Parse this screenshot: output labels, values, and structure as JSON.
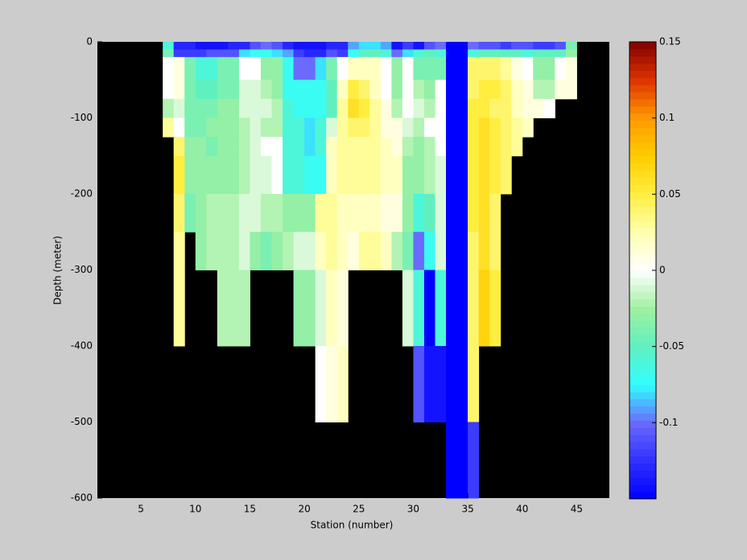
{
  "chart_data": {
    "type": "heatmap",
    "xlabel": "Station (number)",
    "ylabel": "Depth (meter)",
    "xlim": [
      1,
      48
    ],
    "ylim": [
      -600,
      0
    ],
    "xticks": [
      5,
      10,
      15,
      20,
      25,
      30,
      35,
      40,
      45
    ],
    "yticks": [
      0,
      -100,
      -200,
      -300,
      -400,
      -500,
      -600
    ],
    "x_edges": [
      7,
      8,
      9,
      10,
      11,
      12,
      13,
      14,
      15,
      16,
      17,
      18,
      19,
      20,
      21,
      22,
      23,
      24,
      25,
      26,
      27,
      28,
      29,
      30,
      31,
      32,
      33,
      34,
      35,
      36,
      37,
      38,
      39,
      40,
      41,
      42,
      43,
      44,
      45
    ],
    "y_edges": [
      0,
      -10,
      -20,
      -50,
      -75,
      -100,
      -125,
      -150,
      -200,
      -250,
      -300,
      -400,
      -500,
      -600
    ],
    "clim": [
      -0.15,
      0.15
    ],
    "cticks": [
      0.15,
      0.1,
      0.05,
      0,
      -0.05,
      -0.1
    ],
    "colormap": [
      "#0000ff",
      "#3030ff",
      "#6a6aff",
      "#30ffff",
      "#60f0c0",
      "#a0f0a0",
      "#ffffff",
      "#ffffb0",
      "#ffee40",
      "#ffcc00",
      "#ff9900",
      "#dd3300",
      "#800000"
    ],
    "background": "#000000",
    "values": [
      [
        -0.06,
        -0.13,
        -0.13,
        -0.14,
        -0.14,
        -0.14,
        -0.13,
        -0.13,
        -0.11,
        -0.1,
        -0.11,
        -0.13,
        -0.14,
        -0.14,
        -0.14,
        -0.13,
        -0.13,
        -0.09,
        -0.08,
        -0.08,
        -0.09,
        -0.14,
        -0.12,
        -0.14,
        -0.11,
        -0.1,
        -0.15,
        -0.15,
        -0.1,
        -0.11,
        -0.11,
        -0.12,
        -0.11,
        -0.11,
        -0.12,
        -0.12,
        -0.11,
        -0.04
      ],
      [
        -0.04,
        -0.12,
        -0.12,
        -0.12,
        -0.11,
        -0.11,
        -0.11,
        -0.08,
        -0.07,
        -0.07,
        -0.08,
        -0.09,
        -0.12,
        -0.13,
        -0.13,
        -0.11,
        -0.12,
        -0.07,
        -0.05,
        -0.05,
        -0.06,
        -0.1,
        -0.08,
        -0.06,
        -0.05,
        -0.06,
        -0.15,
        -0.15,
        -0.06,
        -0.05,
        -0.05,
        -0.05,
        -0.05,
        -0.06,
        -0.05,
        -0.05,
        -0.05,
        -0.03
      ],
      [
        0,
        0.01,
        -0.04,
        -0.06,
        -0.06,
        -0.04,
        -0.04,
        0,
        0,
        -0.03,
        -0.03,
        -0.07,
        -0.1,
        -0.1,
        -0.08,
        -0.04,
        0,
        0.02,
        0.02,
        0.02,
        0,
        -0.03,
        0,
        -0.04,
        -0.04,
        -0.04,
        -0.15,
        -0.15,
        0.04,
        0.04,
        0.04,
        0.03,
        0.01,
        0,
        -0.03,
        -0.03,
        0,
        0.01
      ],
      [
        0,
        0.01,
        -0.04,
        -0.05,
        -0.05,
        -0.04,
        -0.04,
        -0.01,
        -0.01,
        -0.02,
        -0.03,
        -0.07,
        -0.07,
        -0.07,
        -0.07,
        -0.05,
        0.02,
        0.05,
        0.04,
        0.02,
        0,
        -0.03,
        0,
        -0.02,
        -0.03,
        0,
        -0.15,
        -0.15,
        0.04,
        0.05,
        0.05,
        0.04,
        0.02,
        0.01,
        -0.02,
        -0.02,
        0.01,
        0.01
      ],
      [
        -0.02,
        -0.01,
        -0.04,
        -0.04,
        -0.04,
        -0.03,
        -0.03,
        -0.01,
        -0.01,
        -0.01,
        -0.02,
        -0.06,
        -0.07,
        -0.07,
        -0.07,
        -0.05,
        0.03,
        0.06,
        0.05,
        0.03,
        0.01,
        -0.02,
        0,
        -0.01,
        -0.02,
        0,
        -0.15,
        -0.15,
        0.05,
        0.05,
        0.04,
        0.04,
        0.02,
        0.01,
        0.01,
        0,
        null,
        null
      ],
      [
        0.03,
        0,
        -0.04,
        -0.04,
        -0.03,
        -0.03,
        -0.03,
        -0.02,
        -0.01,
        -0.02,
        -0.02,
        -0.06,
        -0.06,
        -0.08,
        -0.06,
        -0.01,
        0.03,
        0.04,
        0.04,
        0.03,
        0.01,
        0.01,
        -0.01,
        -0.02,
        0,
        0,
        -0.15,
        -0.15,
        0.05,
        0.06,
        0.05,
        0.04,
        0.03,
        0.02,
        null,
        null,
        null,
        null
      ],
      [
        null,
        0.04,
        -0.03,
        -0.03,
        -0.04,
        -0.03,
        -0.03,
        -0.02,
        -0.01,
        0,
        0,
        -0.06,
        -0.06,
        -0.08,
        -0.06,
        0.02,
        0.03,
        0.03,
        0.03,
        0.03,
        0.02,
        0.01,
        -0.02,
        -0.03,
        -0.02,
        0,
        -0.15,
        -0.15,
        0.05,
        0.06,
        0.05,
        0.04,
        0.03,
        null,
        null,
        null,
        null,
        null
      ],
      [
        null,
        0.05,
        -0.03,
        -0.03,
        -0.03,
        -0.03,
        -0.03,
        -0.02,
        -0.01,
        -0.01,
        0,
        -0.06,
        -0.06,
        -0.07,
        -0.07,
        0.02,
        0.03,
        0.03,
        0.03,
        0.03,
        0.02,
        0.02,
        -0.03,
        -0.03,
        -0.02,
        -0.01,
        -0.15,
        -0.15,
        0.05,
        0.06,
        0.05,
        0.04,
        null,
        null,
        null,
        null,
        null,
        null
      ],
      [
        null,
        0.04,
        -0.04,
        -0.03,
        -0.02,
        -0.02,
        -0.02,
        -0.01,
        -0.01,
        -0.02,
        -0.02,
        -0.03,
        -0.03,
        -0.03,
        0.03,
        0.03,
        0.02,
        0.02,
        0.02,
        0.02,
        0.01,
        0.01,
        -0.03,
        -0.06,
        -0.05,
        -0.01,
        -0.15,
        -0.15,
        0.05,
        0.06,
        0.04,
        null,
        null,
        null,
        null,
        null,
        null,
        null
      ],
      [
        null,
        0.03,
        null,
        -0.03,
        -0.02,
        -0.02,
        -0.02,
        -0.01,
        -0.03,
        -0.04,
        -0.03,
        -0.02,
        -0.01,
        -0.01,
        0.02,
        0.03,
        0.02,
        0.01,
        0.03,
        0.03,
        0.02,
        -0.02,
        -0.04,
        -0.1,
        -0.07,
        -0.01,
        -0.15,
        -0.15,
        0.04,
        0.06,
        0.04,
        null,
        null,
        null,
        null,
        null,
        null,
        null
      ],
      [
        null,
        0.03,
        null,
        null,
        null,
        -0.02,
        -0.02,
        -0.02,
        null,
        null,
        null,
        null,
        -0.03,
        -0.03,
        -0.01,
        0.02,
        0.01,
        null,
        null,
        null,
        null,
        null,
        -0.01,
        -0.06,
        -0.15,
        -0.06,
        -0.15,
        -0.15,
        0.04,
        0.07,
        0.05,
        null,
        null,
        null,
        null,
        null,
        null,
        null
      ],
      [
        null,
        null,
        null,
        null,
        null,
        null,
        null,
        null,
        null,
        null,
        null,
        null,
        null,
        null,
        0,
        0.01,
        0.02,
        null,
        null,
        null,
        null,
        null,
        null,
        -0.11,
        -0.14,
        -0.14,
        -0.15,
        -0.15,
        0.04,
        null,
        null,
        null,
        null,
        null,
        null,
        null,
        null,
        null
      ],
      [
        null,
        null,
        null,
        null,
        null,
        null,
        null,
        null,
        null,
        null,
        null,
        null,
        null,
        null,
        null,
        null,
        null,
        null,
        null,
        null,
        null,
        null,
        null,
        null,
        null,
        null,
        -0.15,
        -0.15,
        -0.12,
        null,
        null,
        null,
        null,
        null,
        null,
        null,
        null,
        null
      ]
    ]
  }
}
